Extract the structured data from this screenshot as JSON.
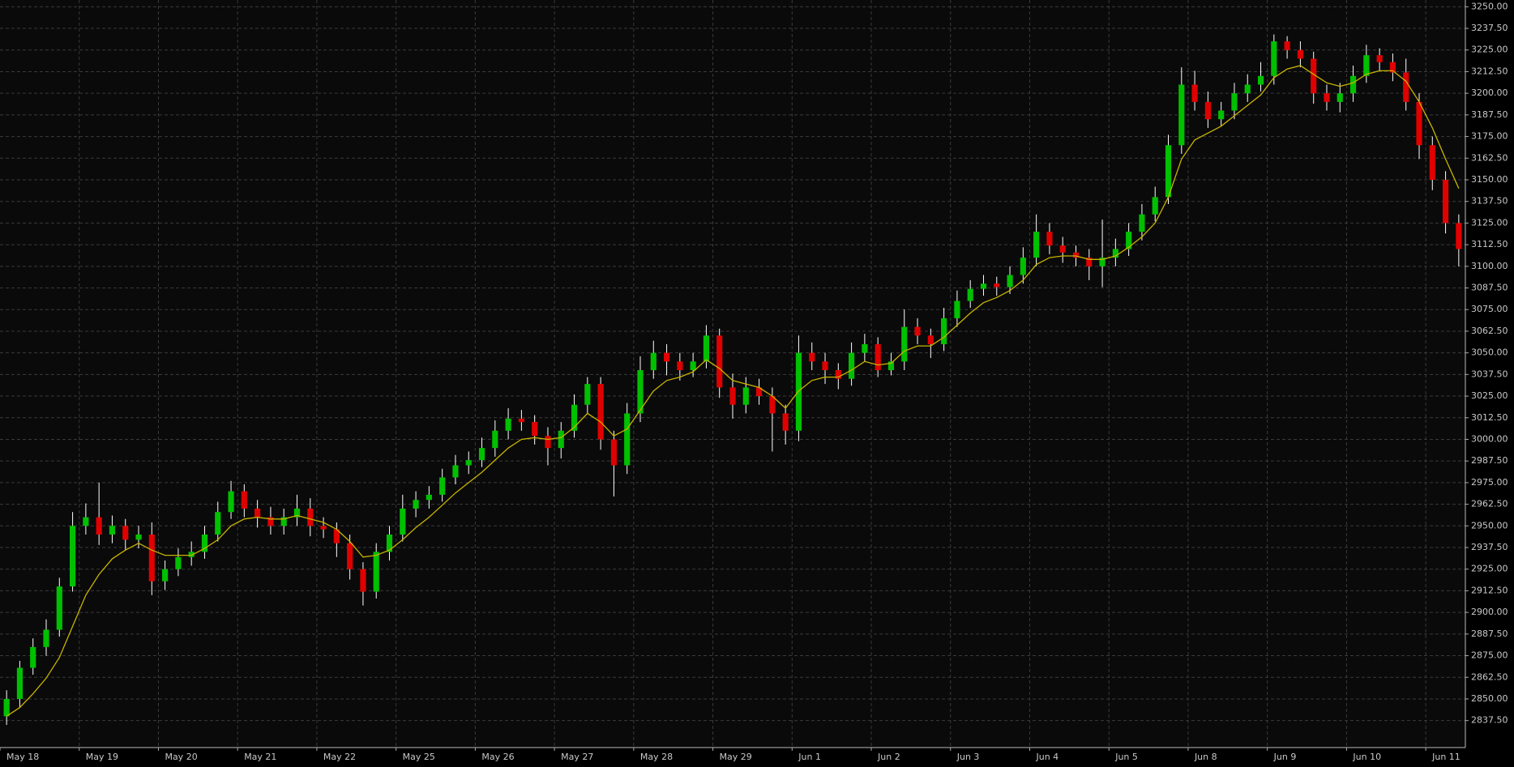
{
  "chart_data": {
    "type": "candlestick",
    "categories": [
      "May 18",
      null,
      null,
      null,
      null,
      null,
      "May 19",
      null,
      null,
      null,
      null,
      null,
      "May 20",
      null,
      null,
      null,
      null,
      null,
      "May 21",
      null,
      null,
      null,
      null,
      null,
      "May 22",
      null,
      null,
      null,
      null,
      null,
      "May 25",
      null,
      null,
      null,
      null,
      null,
      "May 26",
      null,
      null,
      null,
      null,
      null,
      "May 27",
      null,
      null,
      null,
      null,
      null,
      "May 28",
      null,
      null,
      null,
      null,
      null,
      "May 29",
      null,
      null,
      null,
      null,
      null,
      "Jun 1",
      null,
      null,
      null,
      null,
      null,
      "Jun 2",
      null,
      null,
      null,
      null,
      null,
      "Jun 3",
      null,
      null,
      null,
      null,
      null,
      "Jun 4",
      null,
      null,
      null,
      null,
      null,
      "Jun 5",
      null,
      null,
      null,
      null,
      null,
      "Jun 8",
      null,
      null,
      null,
      null,
      null,
      "Jun 9",
      null,
      null,
      null,
      null,
      null,
      "Jun 10",
      null,
      null,
      null,
      null,
      null,
      "Jun 11",
      null,
      null
    ],
    "open": [
      2840,
      2850,
      2868,
      2880,
      2890,
      2915,
      2950,
      2955,
      2945,
      2950,
      2942,
      2945,
      2918,
      2925,
      2932,
      2935,
      2945,
      2958,
      2970,
      2960,
      2955,
      2950,
      2955,
      2960,
      2950,
      2948,
      2940,
      2925,
      2912,
      2935,
      2945,
      2960,
      2965,
      2968,
      2978,
      2985,
      2988,
      2995,
      3005,
      3012,
      3010,
      3002,
      2995,
      3005,
      3020,
      3032,
      3000,
      2985,
      3015,
      3040,
      3050,
      3045,
      3040,
      3045,
      3060,
      3030,
      3020,
      3030,
      3025,
      3015,
      3005,
      3050,
      3045,
      3040,
      3035,
      3050,
      3055,
      3040,
      3045,
      3065,
      3060,
      3055,
      3070,
      3080,
      3087,
      3090,
      3088,
      3095,
      3105,
      3120,
      3112,
      3108,
      3105,
      3100,
      3105,
      3110,
      3120,
      3130,
      3140,
      3170,
      3205,
      3195,
      3185,
      3190,
      3200,
      3205,
      3210,
      3230,
      3225,
      3220,
      3200,
      3195,
      3200,
      3210,
      3222,
      3218,
      3212,
      3195,
      3170,
      3150,
      3125
    ],
    "high": [
      2855,
      2872,
      2885,
      2896,
      2920,
      2958,
      2963,
      2975,
      2956,
      2954,
      2950,
      2952,
      2930,
      2937,
      2941,
      2950,
      2964,
      2976,
      2974,
      2965,
      2961,
      2960,
      2968,
      2966,
      2955,
      2952,
      2945,
      2929,
      2940,
      2950,
      2968,
      2970,
      2973,
      2983,
      2991,
      2993,
      3001,
      3011,
      3018,
      3017,
      3014,
      3007,
      3010,
      3026,
      3036,
      3036,
      3005,
      3021,
      3048,
      3057,
      3055,
      3050,
      3050,
      3066,
      3064,
      3038,
      3036,
      3035,
      3030,
      3020,
      3060,
      3056,
      3050,
      3044,
      3056,
      3061,
      3059,
      3050,
      3075,
      3070,
      3064,
      3076,
      3086,
      3092,
      3095,
      3094,
      3100,
      3111,
      3130,
      3125,
      3117,
      3112,
      3110,
      3127,
      3116,
      3125,
      3136,
      3146,
      3176,
      3215,
      3213,
      3201,
      3195,
      3206,
      3211,
      3218,
      3234,
      3233,
      3230,
      3224,
      3205,
      3206,
      3216,
      3228,
      3226,
      3223,
      3220,
      3200,
      3175,
      3155,
      3130
    ],
    "low": [
      2835,
      2845,
      2864,
      2875,
      2886,
      2912,
      2945,
      2939,
      2940,
      2936,
      2937,
      2910,
      2913,
      2921,
      2927,
      2931,
      2941,
      2954,
      2955,
      2949,
      2945,
      2945,
      2950,
      2944,
      2943,
      2932,
      2919,
      2904,
      2908,
      2930,
      2941,
      2955,
      2960,
      2964,
      2974,
      2980,
      2984,
      2990,
      3000,
      3005,
      2997,
      2985,
      2989,
      3001,
      3015,
      2994,
      2967,
      2980,
      3010,
      3035,
      3037,
      3034,
      3036,
      3041,
      3024,
      3012,
      3015,
      3020,
      2993,
      2997,
      2999,
      3040,
      3032,
      3029,
      3031,
      3045,
      3036,
      3037,
      3040,
      3055,
      3047,
      3051,
      3065,
      3076,
      3083,
      3083,
      3084,
      3090,
      3100,
      3107,
      3102,
      3100,
      3092,
      3088,
      3100,
      3106,
      3115,
      3126,
      3136,
      3165,
      3190,
      3180,
      3181,
      3185,
      3195,
      3201,
      3205,
      3220,
      3215,
      3194,
      3190,
      3189,
      3195,
      3206,
      3213,
      3207,
      3190,
      3162,
      3144,
      3119,
      3100
    ],
    "close": [
      2850,
      2868,
      2880,
      2890,
      2915,
      2950,
      2955,
      2945,
      2950,
      2942,
      2945,
      2918,
      2925,
      2932,
      2935,
      2945,
      2958,
      2970,
      2960,
      2955,
      2950,
      2955,
      2960,
      2950,
      2948,
      2940,
      2925,
      2912,
      2935,
      2945,
      2960,
      2965,
      2968,
      2978,
      2985,
      2988,
      2995,
      3005,
      3012,
      3010,
      3002,
      2995,
      3005,
      3020,
      3032,
      3000,
      2985,
      3015,
      3040,
      3050,
      3045,
      3040,
      3045,
      3060,
      3030,
      3020,
      3030,
      3025,
      3015,
      3005,
      3050,
      3045,
      3040,
      3035,
      3050,
      3055,
      3040,
      3045,
      3065,
      3060,
      3055,
      3070,
      3080,
      3087,
      3090,
      3088,
      3095,
      3105,
      3120,
      3112,
      3108,
      3105,
      3100,
      3105,
      3110,
      3120,
      3130,
      3140,
      3170,
      3205,
      3195,
      3185,
      3190,
      3200,
      3205,
      3210,
      3230,
      3225,
      3220,
      3200,
      3195,
      3200,
      3210,
      3222,
      3218,
      3212,
      3195,
      3170,
      3150,
      3125,
      3110
    ],
    "overlay": {
      "color": "#c8b400",
      "values": [
        2840,
        2845,
        2853,
        2862,
        2874,
        2892,
        2910,
        2922,
        2931,
        2936,
        2940,
        2936,
        2933,
        2933,
        2933,
        2937,
        2942,
        2950,
        2954,
        2955,
        2954,
        2954,
        2956,
        2954,
        2952,
        2948,
        2941,
        2932,
        2933,
        2936,
        2942,
        2949,
        2955,
        2962,
        2969,
        2975,
        2981,
        2988,
        2995,
        3000,
        3001,
        3000,
        3001,
        3007,
        3015,
        3010,
        3002,
        3006,
        3017,
        3028,
        3034,
        3036,
        3039,
        3046,
        3041,
        3034,
        3032,
        3030,
        3025,
        3018,
        3028,
        3034,
        3036,
        3036,
        3040,
        3045,
        3043,
        3044,
        3051,
        3054,
        3054,
        3059,
        3066,
        3073,
        3079,
        3082,
        3086,
        3092,
        3101,
        3105,
        3106,
        3106,
        3104,
        3104,
        3106,
        3111,
        3117,
        3125,
        3140,
        3162,
        3173,
        3177,
        3181,
        3187,
        3193,
        3199,
        3209,
        3214,
        3216,
        3211,
        3206,
        3204,
        3206,
        3211,
        3213,
        3213,
        3207,
        3195,
        3180,
        3162,
        3145
      ]
    },
    "up_color": "#00c000",
    "down_color": "#e00000",
    "wick_color": "#ffffff",
    "ylim": [
      2821.9,
      3253.9
    ],
    "yticks": [
      {
        "value": 2837.5,
        "label": "2837.50"
      },
      {
        "value": 2850,
        "label": "2850.00"
      },
      {
        "value": 2862.5,
        "label": "2862.50"
      },
      {
        "value": 2875,
        "label": "2875.00"
      },
      {
        "value": 2887.5,
        "label": "2887.50"
      },
      {
        "value": 2900,
        "label": "2900.00"
      },
      {
        "value": 2912.5,
        "label": "2912.50"
      },
      {
        "value": 2925,
        "label": "2925.00"
      },
      {
        "value": 2937.5,
        "label": "2937.50"
      },
      {
        "value": 2950,
        "label": "2950.00"
      },
      {
        "value": 2962.5,
        "label": "2962.50"
      },
      {
        "value": 2975,
        "label": "2975.00"
      },
      {
        "value": 2987.5,
        "label": "2987.50"
      },
      {
        "value": 3000,
        "label": "3000.00"
      },
      {
        "value": 3012.5,
        "label": "3012.50"
      },
      {
        "value": 3025,
        "label": "3025.00"
      },
      {
        "value": 3037.5,
        "label": "3037.50"
      },
      {
        "value": 3050,
        "label": "3050.00"
      },
      {
        "value": 3062.5,
        "label": "3062.50"
      },
      {
        "value": 3075,
        "label": "3075.00"
      },
      {
        "value": 3087.5,
        "label": "3087.50"
      },
      {
        "value": 3100,
        "label": "3100.00"
      },
      {
        "value": 3112.5,
        "label": "3112.50"
      },
      {
        "value": 3125,
        "label": "3125.00"
      },
      {
        "value": 3137.5,
        "label": "3137.50"
      },
      {
        "value": 3150,
        "label": "3150.00"
      },
      {
        "value": 3162.5,
        "label": "3162.50"
      },
      {
        "value": 3175,
        "label": "3175.00"
      },
      {
        "value": 3187.5,
        "label": "3187.50"
      },
      {
        "value": 3200,
        "label": "3200.00"
      },
      {
        "value": 3212.5,
        "label": "3212.50"
      },
      {
        "value": 3225,
        "label": "3225.00"
      },
      {
        "value": 3237.5,
        "label": "3237.50"
      },
      {
        "value": 3250,
        "label": "3250.00"
      }
    ],
    "grid": true
  }
}
